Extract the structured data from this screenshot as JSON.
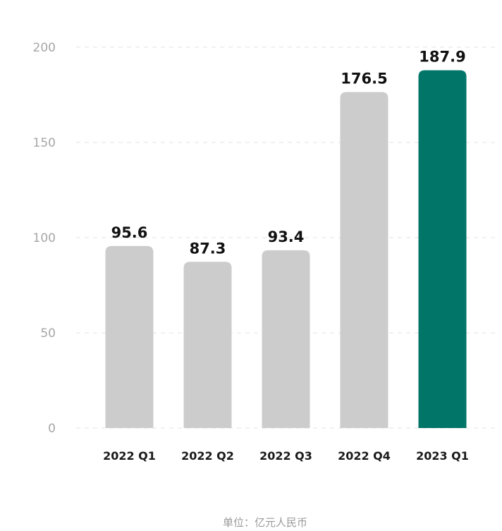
{
  "chart_data": {
    "type": "bar",
    "categories": [
      "2022 Q1",
      "2022 Q2",
      "2022 Q3",
      "2022 Q4",
      "2023 Q1"
    ],
    "values": [
      95.6,
      87.3,
      93.4,
      176.5,
      187.9
    ],
    "value_labels": [
      "95.6",
      "87.3",
      "93.4",
      "176.5",
      "187.9"
    ],
    "y_ticks": [
      "0",
      "50",
      "100",
      "150",
      "200"
    ],
    "ylim": [
      0,
      200
    ],
    "grid": true,
    "highlight_index": 4,
    "colors": {
      "default_bar": "#cccccc",
      "highlight_bar": "#027569",
      "highlight_text": "#027569"
    },
    "unit_note": "单位：亿元人民币"
  }
}
